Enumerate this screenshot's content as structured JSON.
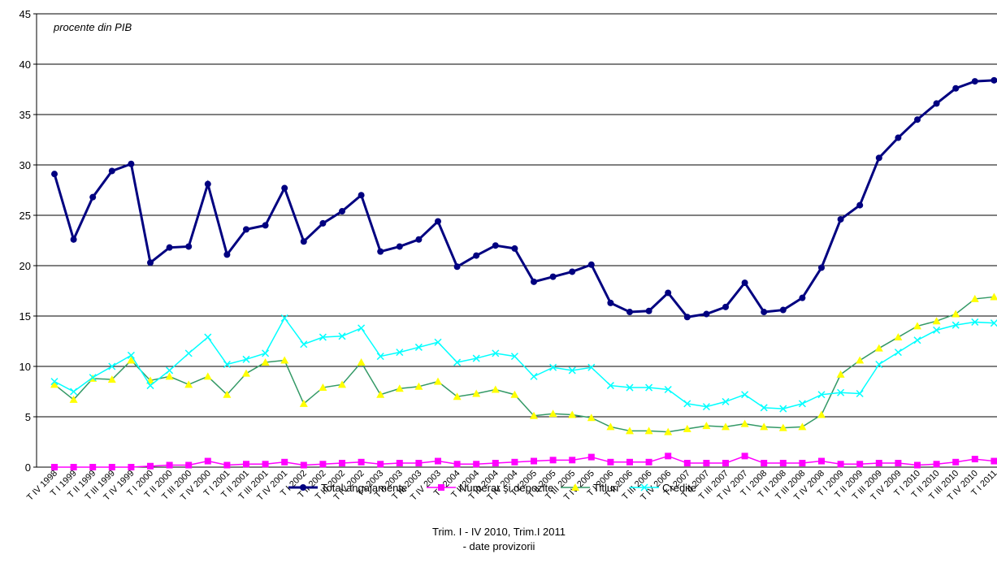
{
  "chart_data": {
    "type": "line",
    "annotation": "procente din PIB",
    "notes": [
      "Trim. I - IV 2010, Trim.I 2011",
      "- date provizorii"
    ],
    "categories": [
      "T IV 1998",
      "T I 1999",
      "T II 1999",
      "T III 1999",
      "T IV 1999",
      "T I 2000",
      "T II 2000",
      "T III 2000",
      "T IV 2000",
      "T I 2001",
      "T II 2001",
      "T III 2001",
      "T IV 2001",
      "T I 2002",
      "T II 2002",
      "T III 2002",
      "T IV 2002",
      "T I 2003",
      "T II 2003",
      "T III 2003",
      "T IV 2003",
      "T I 2004",
      "T II 2004",
      "T III 2004",
      "T IV 2004",
      "T I 2005",
      "T II 2005",
      "T III 2005",
      "T IV 2005",
      "T I 2006",
      "T II 2006",
      "T III 2006",
      "T IV 2006",
      "T I 2007",
      "T II 2007",
      "T III 2007",
      "T IV 2007",
      "T I 2008",
      "T II 2008",
      "T III 2008",
      "T IV 2008",
      "T I 2009",
      "T II 2009",
      "T III 2009",
      "T IV 2009",
      "T I 2010",
      "T II 2010",
      "T III 2010",
      "T IV 2010",
      "T I 2011"
    ],
    "series": [
      {
        "name": "Total angajamente",
        "color": "#000080",
        "marker": "circle",
        "marker_color": "#000080",
        "values": [
          29.1,
          22.6,
          26.8,
          29.4,
          30.1,
          20.3,
          21.8,
          21.9,
          28.1,
          21.1,
          23.6,
          24.0,
          27.7,
          22.4,
          24.2,
          25.4,
          27.0,
          21.4,
          21.9,
          22.6,
          24.4,
          19.9,
          21.0,
          22.0,
          21.7,
          18.4,
          18.9,
          19.4,
          20.1,
          16.3,
          15.4,
          15.5,
          17.3,
          14.9,
          15.2,
          15.9,
          18.3,
          15.4,
          15.6,
          16.8,
          19.8,
          24.6,
          26.0,
          30.7,
          32.7,
          34.5,
          36.1,
          37.6,
          38.3,
          38.4
        ]
      },
      {
        "name": "Numerar şi depozite",
        "color": "#ff00ff",
        "marker": "square",
        "marker_color": "#ff00ff",
        "values": [
          0,
          0,
          0,
          0,
          0,
          0.1,
          0.2,
          0.2,
          0.6,
          0.2,
          0.3,
          0.3,
          0.5,
          0.2,
          0.3,
          0.4,
          0.5,
          0.3,
          0.4,
          0.4,
          0.6,
          0.3,
          0.3,
          0.4,
          0.5,
          0.6,
          0.7,
          0.7,
          1.0,
          0.5,
          0.5,
          0.5,
          1.1,
          0.4,
          0.4,
          0.4,
          1.1,
          0.4,
          0.4,
          0.4,
          0.6,
          0.3,
          0.3,
          0.4,
          0.4,
          0.2,
          0.3,
          0.5,
          0.8,
          0.6
        ]
      },
      {
        "name": "Titluri",
        "color": "#339966",
        "marker": "triangle",
        "marker_color": "#ffff00",
        "values": [
          8.2,
          6.7,
          8.8,
          8.7,
          10.6,
          8.6,
          9.0,
          8.2,
          9.0,
          7.2,
          9.3,
          10.4,
          10.6,
          6.3,
          7.9,
          8.2,
          10.4,
          7.2,
          7.8,
          8.0,
          8.5,
          7.0,
          7.3,
          7.7,
          7.2,
          5.1,
          5.3,
          5.2,
          4.9,
          4.0,
          3.6,
          3.6,
          3.5,
          3.8,
          4.1,
          4.0,
          4.3,
          4.0,
          3.9,
          4.0,
          5.2,
          9.2,
          10.6,
          11.8,
          12.9,
          14.0,
          14.5,
          15.2,
          16.7,
          16.9
        ]
      },
      {
        "name": "Credite",
        "color": "#00ffff",
        "marker": "x",
        "marker_color": "#00ffff",
        "values": [
          8.5,
          7.5,
          8.9,
          10.0,
          11.1,
          8.1,
          9.6,
          11.3,
          12.9,
          10.2,
          10.7,
          11.3,
          14.8,
          12.2,
          12.9,
          13.0,
          13.8,
          11.0,
          11.4,
          11.9,
          12.4,
          10.4,
          10.8,
          11.3,
          11.0,
          9.0,
          9.9,
          9.6,
          9.9,
          8.1,
          7.9,
          7.9,
          7.7,
          6.3,
          6.0,
          6.5,
          7.2,
          5.9,
          5.8,
          6.3,
          7.2,
          7.4,
          7.3,
          10.2,
          11.4,
          12.6,
          13.6,
          14.1,
          14.4,
          14.3
        ]
      }
    ],
    "ylim": [
      0,
      45
    ],
    "yticks": [
      0,
      5,
      10,
      15,
      20,
      25,
      30,
      35,
      40,
      45
    ],
    "grid": true,
    "legend": "bottom"
  }
}
